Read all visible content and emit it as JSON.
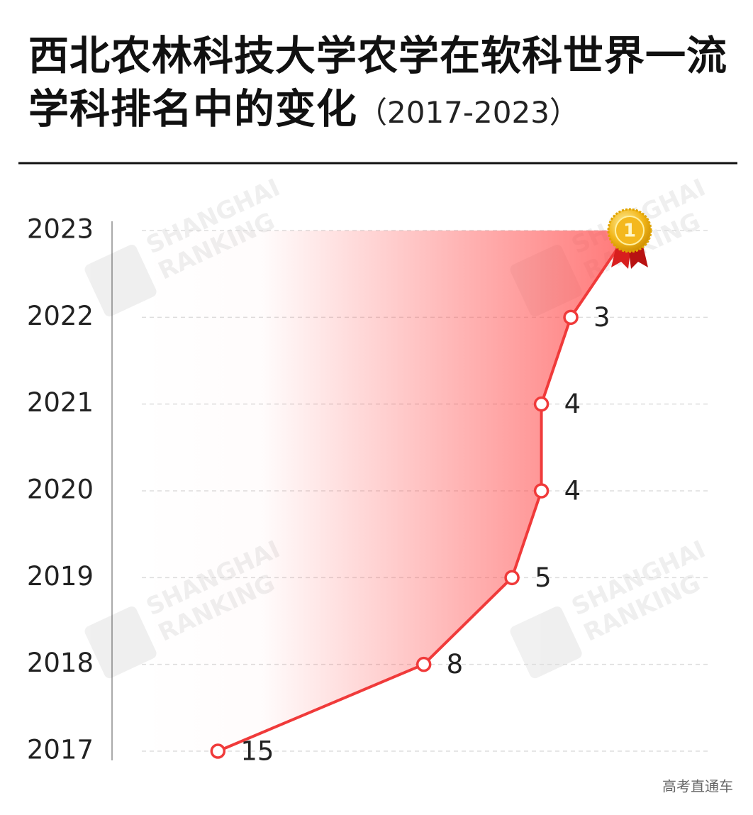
{
  "chart_data": {
    "type": "line",
    "title": "西北农林科技大学农学在软科世界一流学科排名中的变化",
    "subtitle": "（2017-2023）",
    "categories": [
      "2017",
      "2018",
      "2019",
      "2020",
      "2021",
      "2022",
      "2023"
    ],
    "values": [
      15,
      8,
      5,
      4,
      4,
      3,
      1
    ],
    "color": "#f03a3a",
    "xlim": [
      18.6,
      -1.7
    ],
    "grid": true,
    "watermark": [
      "SHANGHAI",
      "RANKING"
    ],
    "source": "高考直通车"
  }
}
